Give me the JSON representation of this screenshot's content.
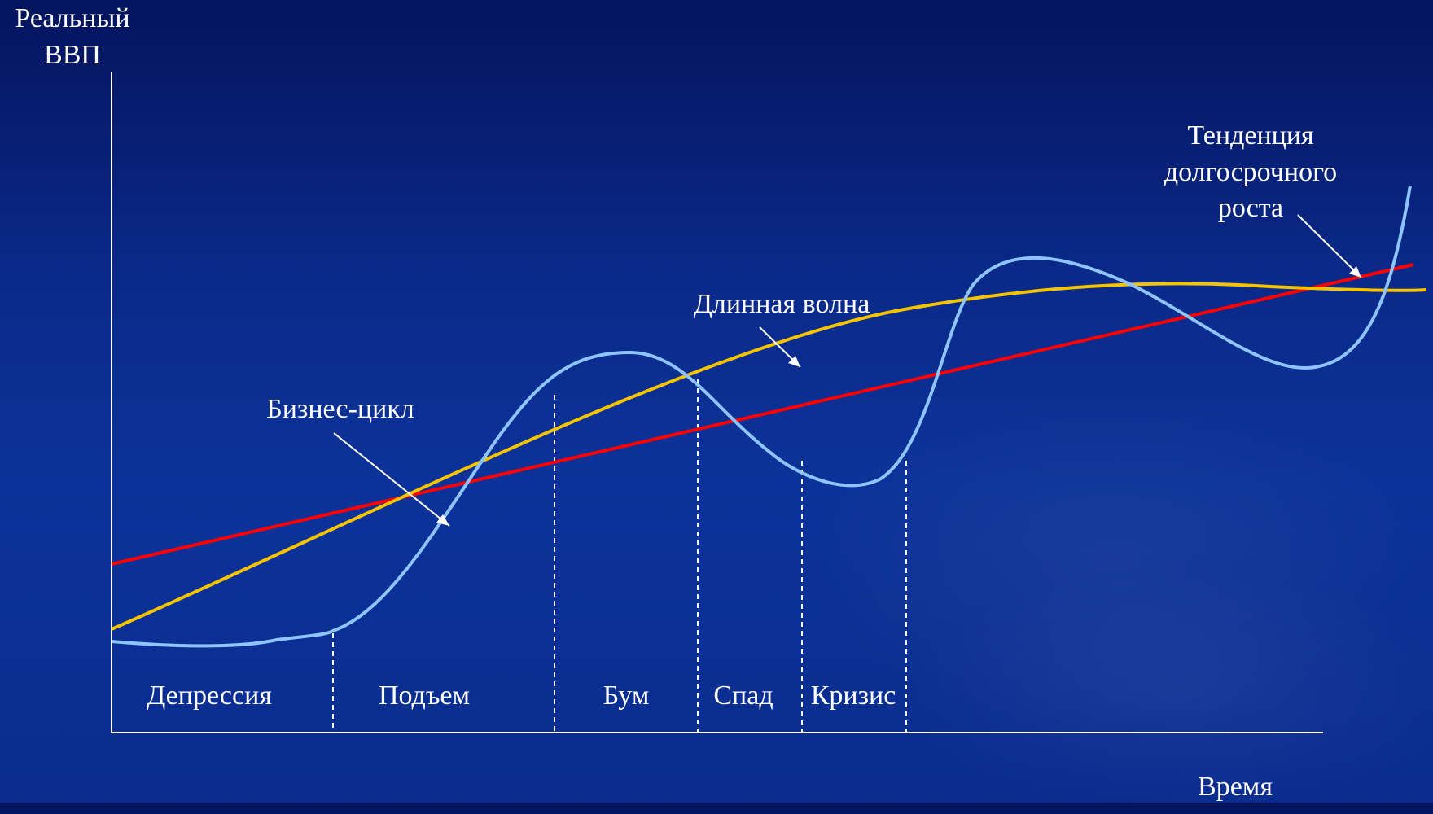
{
  "axes": {
    "y_label_line1": "Реальный",
    "y_label_line2": "ВВП",
    "x_label": "Время"
  },
  "curves": {
    "business_cycle": {
      "label": "Бизнес-цикл",
      "color": "#8ec4ff"
    },
    "long_wave": {
      "label": "Длинная волна",
      "color": "#f5c400"
    },
    "trend": {
      "label_line1": "Тенденция",
      "label_line2": "долгосрочного",
      "label_line3": "роста",
      "color": "#ff0000"
    }
  },
  "phases": [
    "Депрессия",
    "Подъем",
    "Бум",
    "Спад",
    "Кризис"
  ]
}
